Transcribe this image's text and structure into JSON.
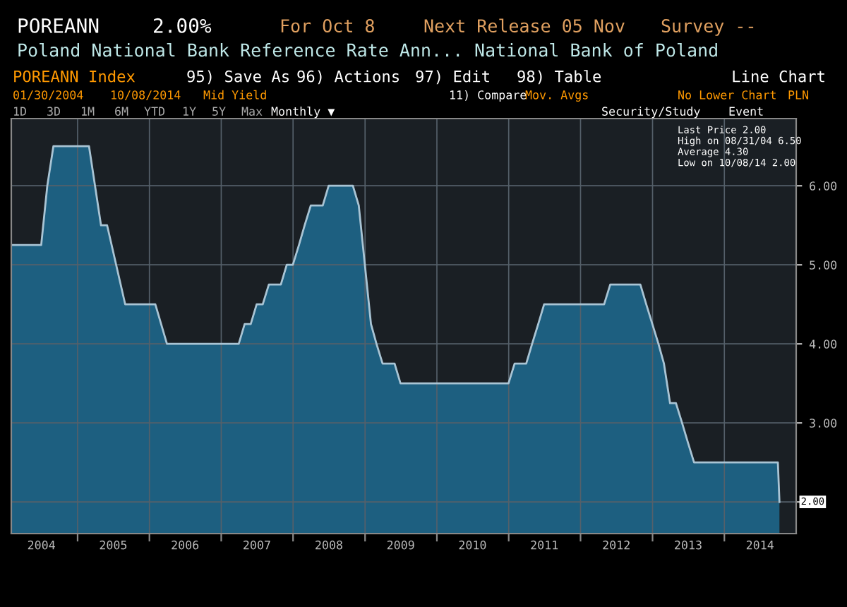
{
  "chart_data": {
    "type": "area",
    "title": "Poland National Bank Reference Rate Ann...",
    "annotations": [
      "POREANN",
      "2.00%",
      "For Oct 8",
      "Next Release 05 Nov",
      "Survey --",
      "National Bank of Poland",
      "POREANN Index",
      "95) Save As",
      "96) Actions",
      "97) Edit",
      "98) Table",
      "Line Chart",
      "01/30/2004",
      "10/08/2014",
      "Mid Yield",
      "11) Compare",
      "Mov. Avgs",
      "No Lower Chart",
      "PLN",
      "1D",
      "3D",
      "1M",
      "6M",
      "YTD",
      "1Y",
      "5Y",
      "Max",
      "Monthly ▼",
      "Security/Study",
      "Event",
      "Last Price 2.00",
      "High on 08/31/04 6.50",
      "Average 4.30",
      "Low on 10/08/14 2.00",
      {
        "text": "2.00",
        "x": "2014-10-08",
        "y": 2.0
      }
    ],
    "x": [
      "2004-01-30",
      "2004-06-30",
      "2004-07-31",
      "2004-08-31",
      "2005-02-28",
      "2005-04-30",
      "2005-05-31",
      "2005-08-31",
      "2006-01-31",
      "2006-03-31",
      "2007-03-31",
      "2007-04-30",
      "2007-05-31",
      "2007-06-30",
      "2007-07-31",
      "2007-08-31",
      "2007-10-31",
      "2007-11-30",
      "2007-12-31",
      "2008-01-31",
      "2008-02-29",
      "2008-03-31",
      "2008-05-31",
      "2008-06-30",
      "2008-10-31",
      "2008-11-30",
      "2008-12-31",
      "2009-01-31",
      "2009-02-28",
      "2009-03-31",
      "2009-05-31",
      "2009-06-30",
      "2010-12-31",
      "2011-01-31",
      "2011-03-31",
      "2011-04-30",
      "2011-05-31",
      "2011-06-30",
      "2012-04-30",
      "2012-05-31",
      "2012-10-31",
      "2012-11-30",
      "2012-12-31",
      "2013-01-31",
      "2013-02-28",
      "2013-03-31",
      "2013-04-30",
      "2013-05-31",
      "2013-06-30",
      "2013-07-31",
      "2014-09-30",
      "2014-10-08"
    ],
    "series": [
      {
        "color": "#1d5f80",
        "values": [
          5.25,
          5.25,
          6.0,
          6.5,
          6.5,
          5.5,
          5.5,
          4.5,
          4.5,
          4.0,
          4.0,
          4.25,
          4.25,
          4.5,
          4.5,
          4.75,
          4.75,
          5.0,
          5.0,
          5.25,
          5.5,
          5.75,
          5.75,
          6.0,
          6.0,
          5.75,
          5.0,
          4.25,
          4.0,
          3.75,
          3.75,
          3.5,
          3.5,
          3.75,
          3.75,
          4.0,
          4.25,
          4.5,
          4.5,
          4.75,
          4.75,
          4.5,
          4.25,
          4.0,
          3.75,
          3.25,
          3.25,
          3.0,
          2.75,
          2.5,
          2.5,
          2.0
        ]
      }
    ],
    "xlim": [
      "2004-01-30",
      "2015-01-01"
    ],
    "xticks": [
      {
        "value": "2004-07-01",
        "label": "2004"
      },
      {
        "value": "2005-01-01",
        "label": null
      },
      {
        "value": "2005-07-01",
        "label": "2005"
      },
      {
        "value": "2006-01-01",
        "label": null
      },
      {
        "value": "2006-07-01",
        "label": "2006"
      },
      {
        "value": "2007-01-01",
        "label": null
      },
      {
        "value": "2007-07-01",
        "label": "2007"
      },
      {
        "value": "2008-01-01",
        "label": null
      },
      {
        "value": "2008-07-01",
        "label": "2008"
      },
      {
        "value": "2009-01-01",
        "label": null
      },
      {
        "value": "2009-07-01",
        "label": "2009"
      },
      {
        "value": "2010-01-01",
        "label": null
      },
      {
        "value": "2010-07-01",
        "label": "2010"
      },
      {
        "value": "2011-01-01",
        "label": null
      },
      {
        "value": "2011-07-01",
        "label": "2011"
      },
      {
        "value": "2012-01-01",
        "label": null
      },
      {
        "value": "2012-07-01",
        "label": "2012"
      },
      {
        "value": "2013-01-01",
        "label": null
      },
      {
        "value": "2013-07-01",
        "label": "2013"
      },
      {
        "value": "2014-01-01",
        "label": null
      },
      {
        "value": "2014-07-01",
        "label": "2014"
      }
    ],
    "ylim": [
      1.6,
      6.85
    ],
    "yticks": [
      {
        "value": 2,
        "label": null
      },
      {
        "value": 3,
        "label": "3.00"
      },
      {
        "value": 4,
        "label": "4.00"
      },
      {
        "value": 5,
        "label": "5.00"
      },
      {
        "value": 6,
        "label": "6.00"
      }
    ],
    "grid": true
  }
}
